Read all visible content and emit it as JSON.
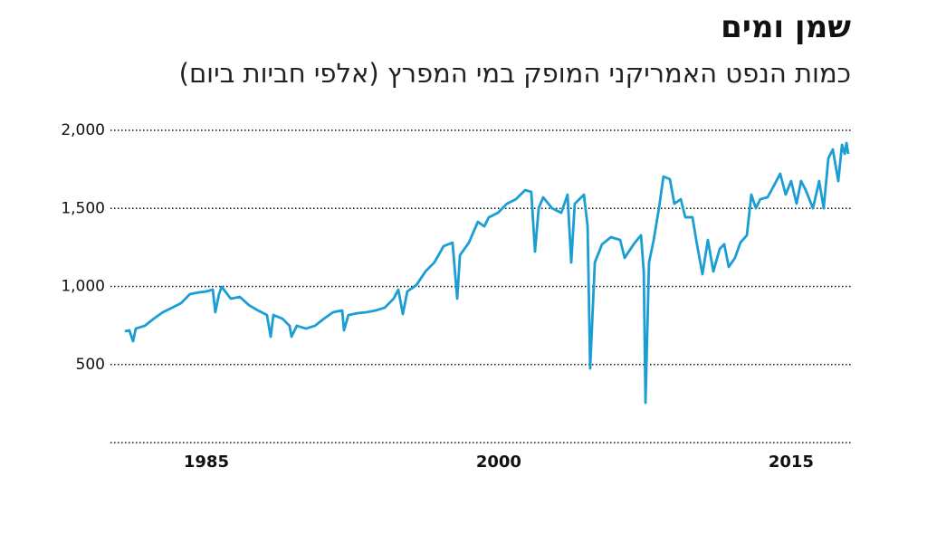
{
  "chart_data": {
    "type": "line",
    "title": "שמן ומים",
    "subtitle": "כמות הנפט האמריקני המופק במי המפרץ (אלפי חביות ביום)",
    "xlim": [
      1980.08,
      2018.07
    ],
    "xticks": [
      1985,
      2000,
      2015
    ],
    "ylim": [
      0,
      2000
    ],
    "yticks": [
      {
        "value": 500,
        "label": "500"
      },
      {
        "value": 1000,
        "label": "1,000"
      },
      {
        "value": 1500,
        "label": "1,500"
      },
      {
        "value": 2000,
        "label": "2,000"
      }
    ],
    "grid": true,
    "series": [
      {
        "color": "#1a9ed4",
        "x": [
          1980.82,
          1981.05,
          1981.24,
          1981.38,
          1981.84,
          1982.31,
          1982.77,
          1983.24,
          1983.7,
          1984.16,
          1984.63,
          1985.0,
          1985.33,
          1985.46,
          1985.65,
          1985.79,
          1986.25,
          1986.72,
          1987.18,
          1987.65,
          1988.11,
          1988.3,
          1988.44,
          1988.9,
          1989.27,
          1989.37,
          1989.64,
          1990.11,
          1990.57,
          1991.04,
          1991.5,
          1991.97,
          1992.06,
          1992.29,
          1992.76,
          1993.22,
          1993.69,
          1994.15,
          1994.61,
          1994.85,
          1995.08,
          1995.31,
          1995.78,
          1996.24,
          1996.7,
          1997.17,
          1997.63,
          1997.87,
          1998.01,
          1998.47,
          1998.93,
          1999.26,
          1999.49,
          1999.96,
          2000.42,
          2000.88,
          2001.35,
          2001.67,
          2001.86,
          2002.05,
          2002.28,
          2002.74,
          2003.21,
          2003.53,
          2003.72,
          2003.9,
          2004.37,
          2004.56,
          2004.69,
          2004.93,
          2005.3,
          2005.76,
          2006.23,
          2006.46,
          2006.92,
          2007.3,
          2007.44,
          2007.53,
          2007.71,
          2007.95,
          2008.22,
          2008.45,
          2008.78,
          2009.01,
          2009.34,
          2009.57,
          2009.94,
          2010.17,
          2010.45,
          2010.73,
          2011.01,
          2011.34,
          2011.57,
          2011.8,
          2012.12,
          2012.4,
          2012.73,
          2012.96,
          2013.19,
          2013.42,
          2013.79,
          2014.12,
          2014.44,
          2014.72,
          2015.0,
          2015.28,
          2015.51,
          2015.75,
          2016.12,
          2016.44,
          2016.67,
          2016.91,
          2017.14,
          2017.42,
          2017.61,
          2017.75,
          2017.84,
          2017.93
        ],
        "values": [
          713,
          719,
          649,
          730,
          748,
          794,
          835,
          864,
          893,
          951,
          962,
          968,
          980,
          835,
          951,
          997,
          922,
          933,
          881,
          846,
          817,
          678,
          817,
          794,
          748,
          678,
          748,
          730,
          748,
          794,
          835,
          846,
          719,
          817,
          829,
          835,
          846,
          864,
          922,
          980,
          823,
          968,
          1009,
          1096,
          1154,
          1258,
          1281,
          922,
          1200,
          1281,
          1414,
          1385,
          1443,
          1472,
          1530,
          1559,
          1617,
          1606,
          1223,
          1501,
          1571,
          1501,
          1472,
          1588,
          1154,
          1530,
          1588,
          1385,
          475,
          1154,
          1270,
          1316,
          1298,
          1183,
          1270,
          1328,
          1096,
          255,
          1154,
          1298,
          1501,
          1704,
          1687,
          1530,
          1559,
          1443,
          1443,
          1270,
          1078,
          1298,
          1096,
          1241,
          1270,
          1125,
          1183,
          1281,
          1328,
          1588,
          1501,
          1559,
          1571,
          1646,
          1722,
          1588,
          1675,
          1530,
          1675,
          1617,
          1501,
          1675,
          1501,
          1820,
          1878,
          1675,
          1907,
          1849,
          1919,
          1849
        ]
      }
    ]
  }
}
